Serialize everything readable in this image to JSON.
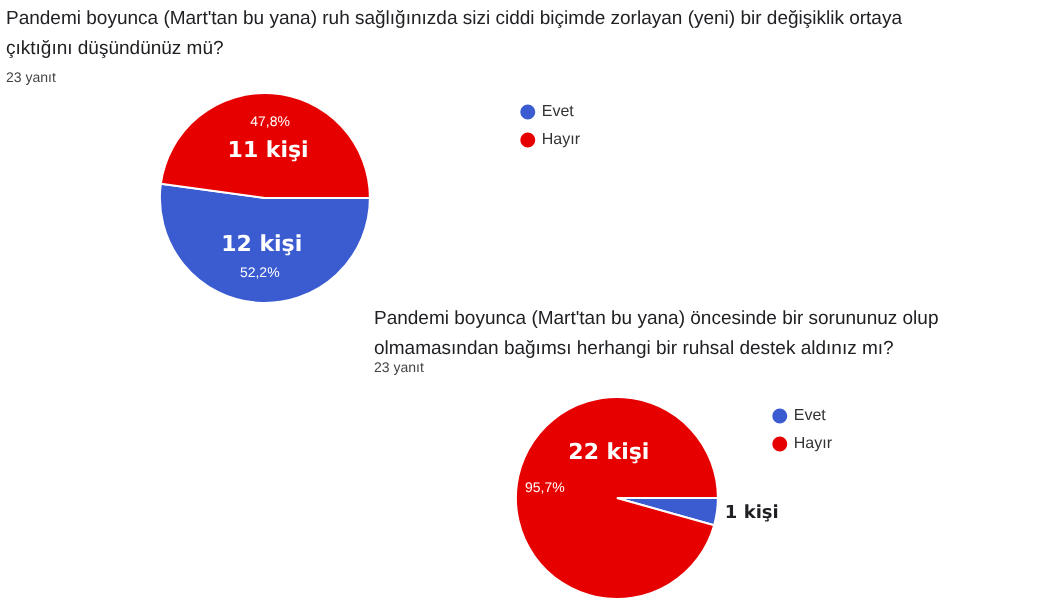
{
  "chart_data": [
    {
      "type": "pie",
      "title": "Pandemi boyunca (Mart'tan bu yana) ruh sağlığınızda sizi ciddi biçimde zorlayan (yeni) bir değişiklik ortaya çıktığını düşündünüz mü?",
      "subtitle": "23 yanıt",
      "categories": [
        "Evet",
        "Hayır"
      ],
      "values": [
        12,
        11
      ],
      "colors": [
        "#3b5bd1",
        "#e60000"
      ],
      "value_labels": [
        "12 kişi",
        "11 kişi"
      ],
      "annotations": [
        {
          "text": "52,2%",
          "x": "Evet"
        },
        {
          "text": "47,8%",
          "x": "Hayır"
        }
      ],
      "legend": "right"
    },
    {
      "type": "pie",
      "title": "Pandemi boyunca (Mart'tan bu yana) öncesinde bir sorununuz olup olmamasından bağımsı herhangi bir ruhsal destek aldınız mı?",
      "subtitle": "23 yanıt",
      "categories": [
        "Evet",
        "Hayır"
      ],
      "values": [
        1,
        22
      ],
      "colors": [
        "#3b5bd1",
        "#e60000"
      ],
      "value_labels": [
        "1 kişi",
        "22 kişi"
      ],
      "annotations": [
        {
          "text": "95,7%",
          "x": "Hayır"
        }
      ],
      "legend": "right"
    }
  ]
}
